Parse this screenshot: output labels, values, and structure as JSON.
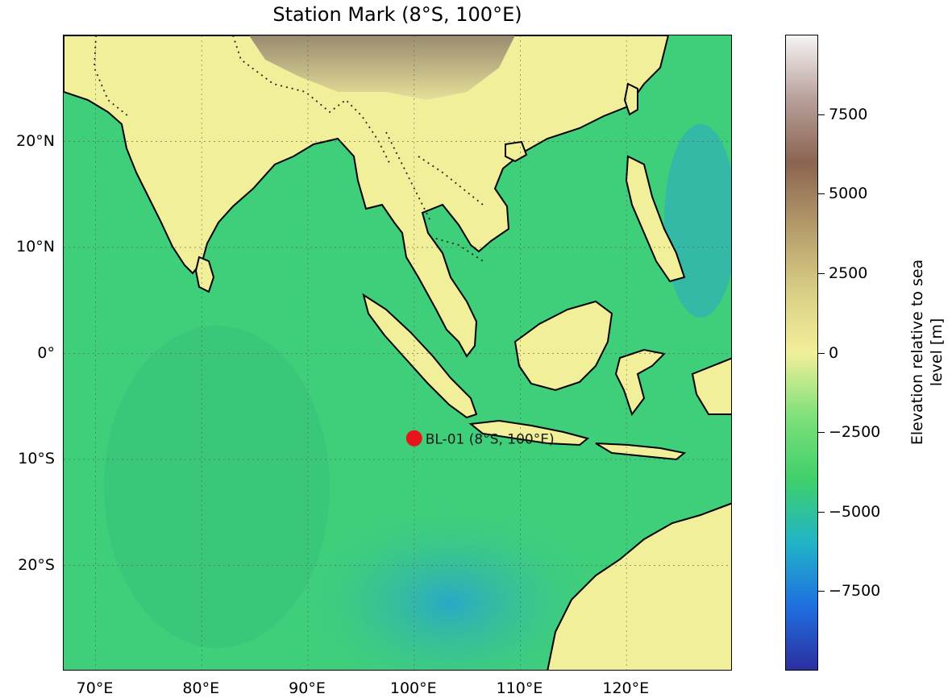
{
  "title": "Station Mark (8°S, 100°E)",
  "map": {
    "lon_range": [
      67,
      130
    ],
    "lat_range": [
      -30,
      30
    ],
    "x_ticks": [
      {
        "lon": 70,
        "label": "70°E"
      },
      {
        "lon": 80,
        "label": "80°E"
      },
      {
        "lon": 90,
        "label": "90°E"
      },
      {
        "lon": 100,
        "label": "100°E"
      },
      {
        "lon": 110,
        "label": "110°E"
      },
      {
        "lon": 120,
        "label": "120°E"
      }
    ],
    "y_ticks": [
      {
        "lat": 20,
        "label": "20°N"
      },
      {
        "lat": 10,
        "label": "10°N"
      },
      {
        "lat": 0,
        "label": "0°"
      },
      {
        "lat": -10,
        "label": "10°S"
      },
      {
        "lat": -20,
        "label": "20°S"
      }
    ],
    "station": {
      "name": "BL-01 (8°S, 100°E)",
      "lon": 100,
      "lat": -8,
      "color": "#e8141c"
    },
    "land_color": "#f2ef9a",
    "ocean_color": "#3fcf7a",
    "deep_ocean_color": "#2aa8c8"
  },
  "colorbar": {
    "label": "Elevation relative to sea level [m]",
    "label_lines": [
      "Elevation relative to sea",
      "level [m]"
    ],
    "range": [
      -10000,
      10000
    ],
    "ticks": [
      {
        "value": 7500,
        "label": "7500"
      },
      {
        "value": 5000,
        "label": "5000"
      },
      {
        "value": 2500,
        "label": "2500"
      },
      {
        "value": 0,
        "label": "0"
      },
      {
        "value": -2500,
        "label": "−2500"
      },
      {
        "value": -5000,
        "label": "−5000"
      },
      {
        "value": -7500,
        "label": "−7500"
      }
    ],
    "colors": [
      "#2b2fa0",
      "#1f6fe0",
      "#20b4c8",
      "#3fd06a",
      "#7fe07a",
      "#f2ef9a",
      "#d8cd84",
      "#b39a6a",
      "#8a6450",
      "#b8a09a",
      "#f6f4f4"
    ]
  }
}
